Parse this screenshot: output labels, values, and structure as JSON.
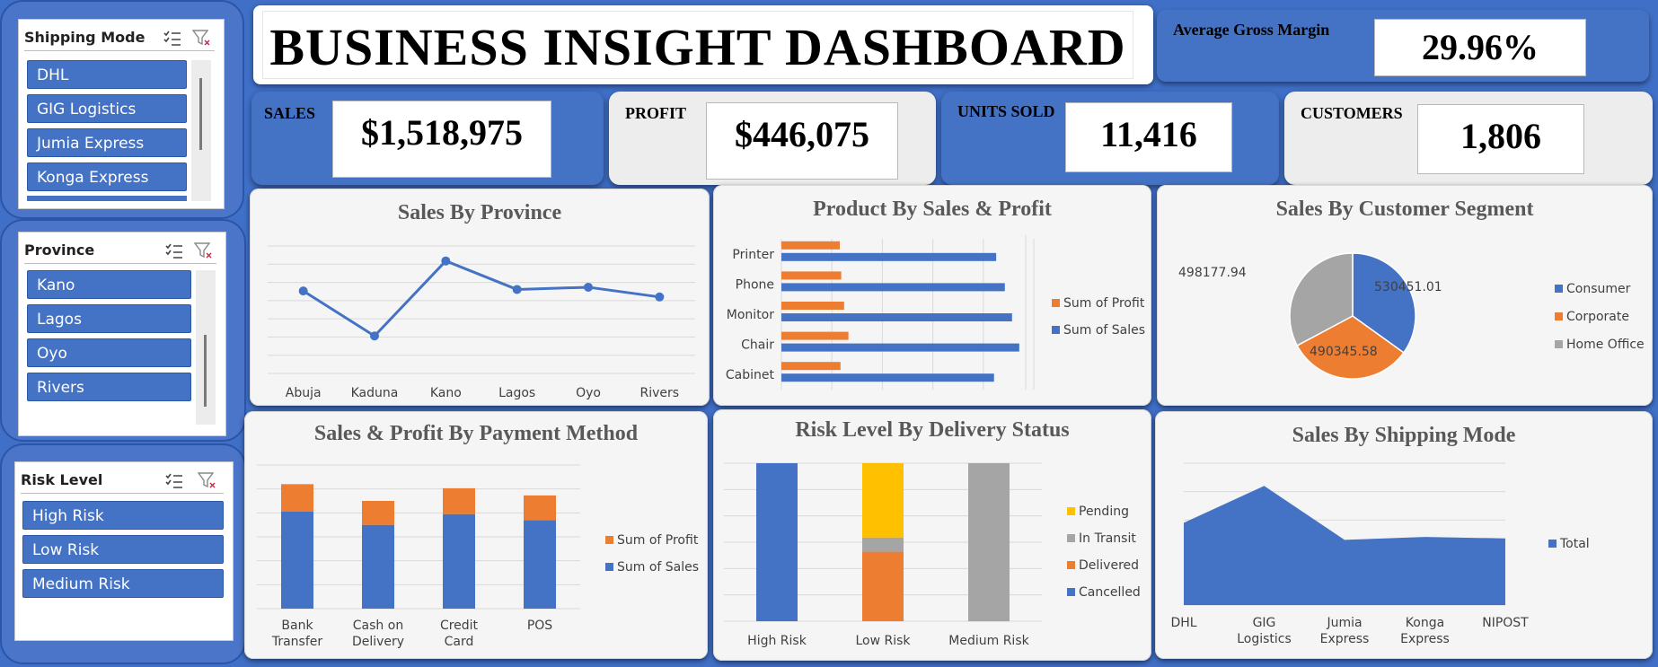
{
  "colors": {
    "blue": "#4472c4",
    "orange": "#ed7d31",
    "gray": "#a5a5a5",
    "yellow": "#ffc000"
  },
  "slicers": {
    "shipping": {
      "title": "Shipping Mode",
      "items": [
        "DHL",
        "GIG Logistics",
        "Jumia Express",
        "Konga Express"
      ]
    },
    "province": {
      "title": "Province",
      "items": [
        "Kano",
        "Lagos",
        "Oyo",
        "Rivers"
      ]
    },
    "risk": {
      "title": "Risk Level",
      "items": [
        "High Risk",
        "Low Risk",
        "Medium Risk"
      ]
    },
    "icons": [
      "multi-select-icon",
      "clear-filter-icon"
    ]
  },
  "title": "BUSINESS INSIGHT DASHBOARD",
  "kpis": {
    "agm": {
      "label": "Average Gross Margin",
      "value": "29.96%"
    },
    "sales": {
      "label": "SALES",
      "value": "$1,518,975"
    },
    "profit": {
      "label": "PROFIT",
      "value": "$446,075"
    },
    "units": {
      "label": "UNITS SOLD",
      "value": "11,416"
    },
    "customers": {
      "label": "CUSTOMERS",
      "value": "1,806"
    }
  },
  "chart_data": [
    {
      "id": "province",
      "type": "line",
      "title": "Sales By Province",
      "categories": [
        "Abuja",
        "Kaduna",
        "Kano",
        "Lagos",
        "Oyo",
        "Rivers"
      ],
      "series": [
        {
          "values": [
            260000,
            200000,
            300000,
            262000,
            265000,
            252000
          ]
        }
      ],
      "ylim": [
        150000,
        320000
      ],
      "grid": true
    },
    {
      "id": "product",
      "type": "bar",
      "orientation": "horizontal",
      "title": "Product By Sales & Profit",
      "categories": [
        "Printer",
        "Phone",
        "Monitor",
        "Chair",
        "Cabinet"
      ],
      "series": [
        {
          "name": "Sum of Profit",
          "values": [
            81000,
            83000,
            87000,
            93000,
            82000
          ]
        },
        {
          "name": "Sum of Sales",
          "values": [
            298000,
            310000,
            320000,
            330000,
            295000
          ]
        }
      ],
      "xlim": [
        0,
        400000
      ],
      "legend": "right"
    },
    {
      "id": "segment",
      "type": "pie",
      "title": "Sales By Customer Segment",
      "categories": [
        "Consumer",
        "Corporate",
        "Home Office"
      ],
      "values": [
        530451.01,
        490345.58,
        498177.94
      ],
      "data_labels": [
        "530451.01",
        "490345.58",
        "498177.94"
      ],
      "legend": "right"
    },
    {
      "id": "payment",
      "type": "bar",
      "stacked": true,
      "title": "Sales & Profit By Payment Method",
      "categories": [
        "Bank Transfer",
        "Cash on Delivery",
        "Credit Card",
        "POS"
      ],
      "series": [
        {
          "name": "Sum of Sales",
          "values": [
            405000,
            350000,
            395000,
            370000
          ]
        },
        {
          "name": "Sum of Profit",
          "values": [
            115000,
            100000,
            108000,
            103000
          ]
        }
      ],
      "ylim": [
        0,
        600000
      ],
      "legend": "right"
    },
    {
      "id": "risk",
      "type": "bar",
      "stacked": true,
      "normalized": true,
      "title": "Risk Level By Delivery Status",
      "categories": [
        "High Risk",
        "Low Risk",
        "Medium Risk"
      ],
      "series": [
        {
          "name": "Cancelled",
          "values": [
            100,
            0,
            0
          ]
        },
        {
          "name": "Delivered",
          "values": [
            0,
            44,
            0
          ]
        },
        {
          "name": "In Transit",
          "values": [
            0,
            9,
            100
          ]
        },
        {
          "name": "Pending",
          "values": [
            0,
            47,
            0
          ]
        }
      ],
      "ylim": [
        0,
        100
      ],
      "legend": "right"
    },
    {
      "id": "shipping",
      "type": "area",
      "title": "Sales By Shipping Mode",
      "categories": [
        "DHL",
        "GIG Logistics",
        "Jumia Express",
        "Konga Express",
        "NIPOST"
      ],
      "series": [
        {
          "name": "Total",
          "values": [
            290000,
            420000,
            230000,
            240000,
            235000
          ]
        }
      ],
      "ylim": [
        0,
        500000
      ],
      "legend": "right"
    }
  ]
}
